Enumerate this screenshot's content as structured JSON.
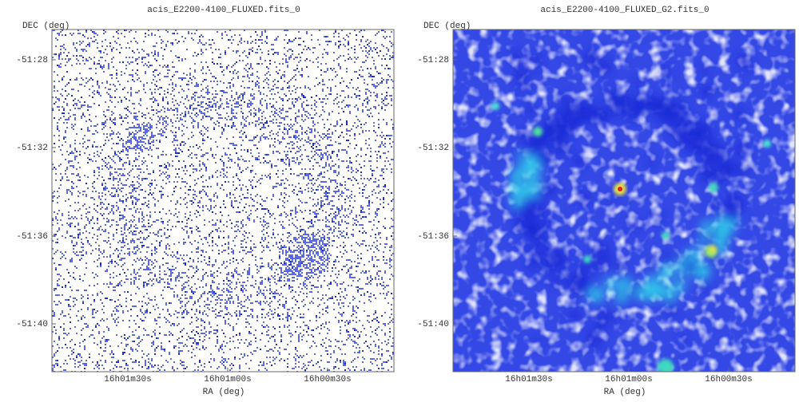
{
  "panels": [
    {
      "title": "acis_E2200-4100_FLUXED.fits_0",
      "y_axis_label": "DEC (deg)",
      "x_axis_label": "RA (deg)",
      "y_tick_labels": [
        "-51:28",
        "-51:32",
        "-51:36",
        "-51:40"
      ],
      "x_tick_labels": [
        "16h01m30s",
        "16h01m00s",
        "16h00m30s"
      ]
    },
    {
      "title": "acis_E2200-4100_FLUXED_G2.fits_0",
      "y_axis_label": "DEC (deg)",
      "x_axis_label": "RA (deg)",
      "y_tick_labels": [
        "-51:28",
        "-51:32",
        "-51:36",
        "-51:40"
      ],
      "x_tick_labels": [
        "16h01m30s",
        "16h01m00s",
        "16h00m30s"
      ]
    }
  ]
}
